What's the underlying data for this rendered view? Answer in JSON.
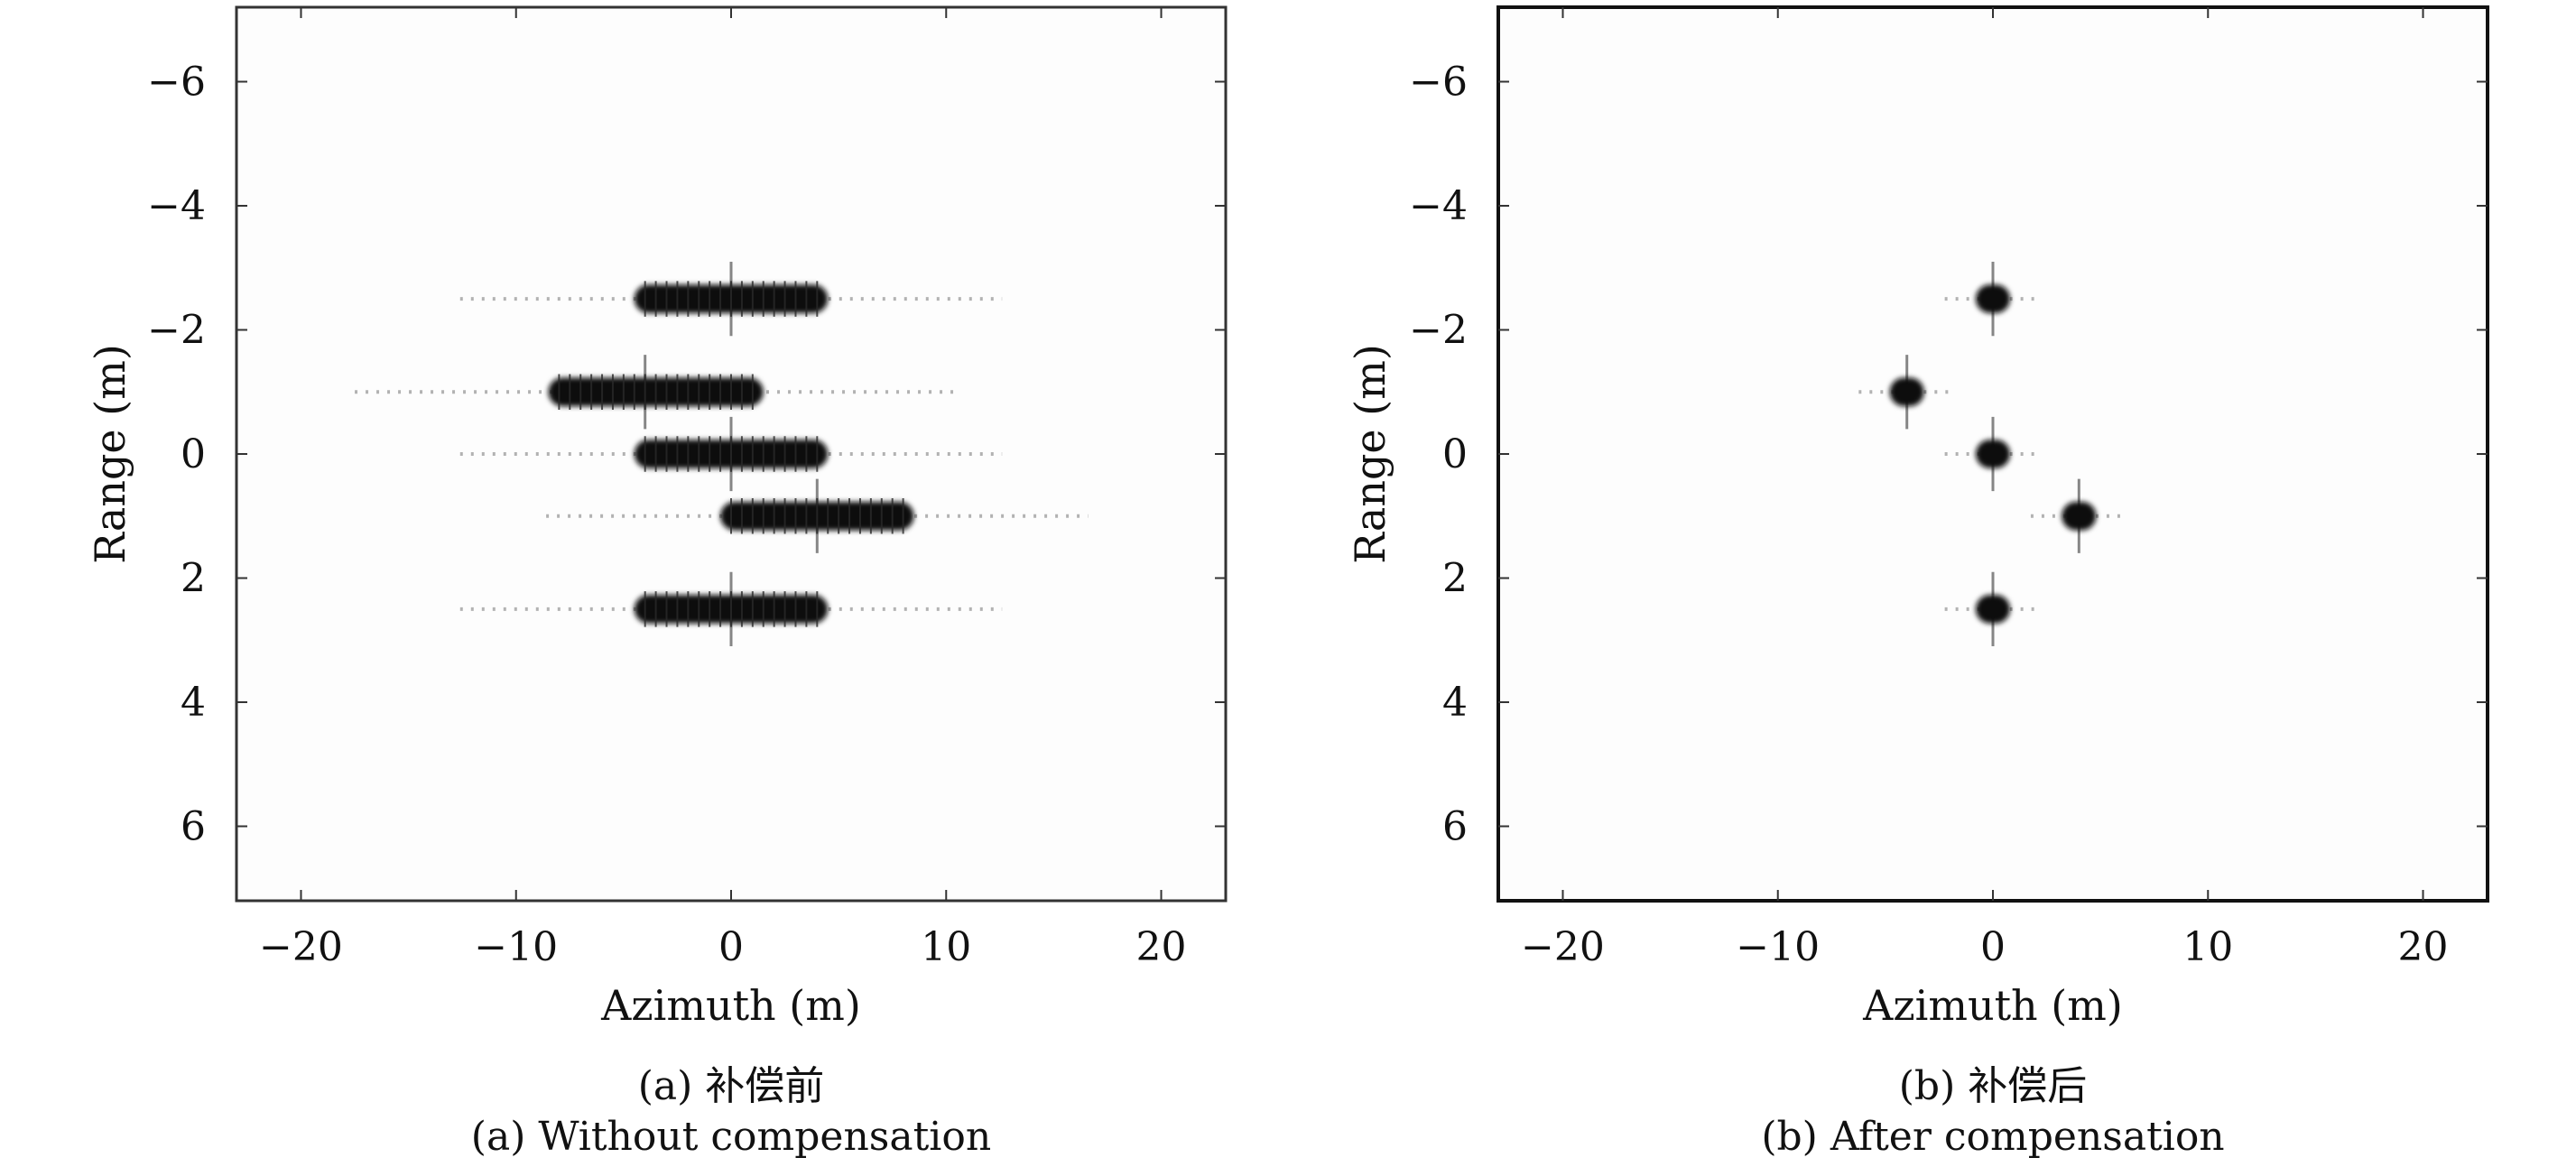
{
  "figure": {
    "panels": [
      {
        "caption_cn": "(a) 补偿前",
        "caption_en": "(a) Without compensation"
      },
      {
        "caption_cn": "(b) 补偿后",
        "caption_en": "(b) After compensation"
      }
    ]
  },
  "chart_data": [
    {
      "type": "heatmap",
      "title": "",
      "xlabel": "Azimuth (m)",
      "ylabel": "Range (m)",
      "xlim": [
        -23,
        23
      ],
      "ylim": [
        -7.2,
        7.2
      ],
      "y_inverted": true,
      "xticks": [
        -20,
        -10,
        0,
        10,
        20
      ],
      "xtick_labels": [
        "−20",
        "−10",
        "0",
        "10",
        "20"
      ],
      "yticks": [
        -6,
        -4,
        -2,
        0,
        2,
        4,
        6
      ],
      "ytick_labels": [
        "−6",
        "−4",
        "−2",
        "0",
        "2",
        "4",
        "6"
      ],
      "grid": false,
      "colormap": "gray_reversed",
      "point_targets": [
        {
          "azimuth": 0,
          "range": -2.5,
          "azimuth_extent": [
            -4.5,
            4.5
          ]
        },
        {
          "azimuth": -4,
          "range": -1,
          "azimuth_extent": [
            -8.5,
            1.5
          ]
        },
        {
          "azimuth": 0,
          "range": 0,
          "azimuth_extent": [
            -4.5,
            4.5
          ]
        },
        {
          "azimuth": 4,
          "range": 1,
          "azimuth_extent": [
            -0.5,
            8.5
          ]
        },
        {
          "azimuth": 0,
          "range": 2.5,
          "azimuth_extent": [
            -4.5,
            4.5
          ]
        }
      ]
    },
    {
      "type": "heatmap",
      "title": "",
      "xlabel": "Azimuth (m)",
      "ylabel": "Range (m)",
      "xlim": [
        -23,
        23
      ],
      "ylim": [
        -7.2,
        7.2
      ],
      "y_inverted": true,
      "xticks": [
        -20,
        -10,
        0,
        10,
        20
      ],
      "xtick_labels": [
        "−20",
        "−10",
        "0",
        "10",
        "20"
      ],
      "yticks": [
        -6,
        -4,
        -2,
        0,
        2,
        4,
        6
      ],
      "ytick_labels": [
        "−6",
        "−4",
        "−2",
        "0",
        "2",
        "4",
        "6"
      ],
      "grid": false,
      "colormap": "gray_reversed",
      "point_targets": [
        {
          "azimuth": 0,
          "range": -2.5,
          "azimuth_extent": [
            -0.8,
            0.8
          ]
        },
        {
          "azimuth": -4,
          "range": -1,
          "azimuth_extent": [
            -4.8,
            -3.2
          ]
        },
        {
          "azimuth": 0,
          "range": 0,
          "azimuth_extent": [
            -0.8,
            0.8
          ]
        },
        {
          "azimuth": 4,
          "range": 1,
          "azimuth_extent": [
            3.2,
            4.8
          ]
        },
        {
          "azimuth": 0,
          "range": 2.5,
          "azimuth_extent": [
            -0.8,
            0.8
          ]
        }
      ]
    }
  ]
}
